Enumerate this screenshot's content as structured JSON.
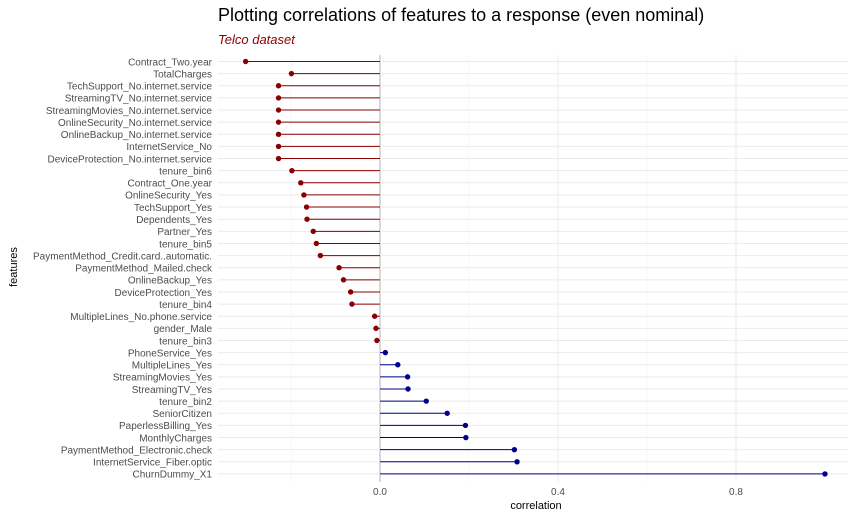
{
  "title": "Plotting correlations of features to a response (even nominal)",
  "subtitle": "Telco dataset",
  "colors": {
    "negative": "#8b0000",
    "positive": "#00008b",
    "subtitle": "#8b0000",
    "grid_major": "#ebebeb",
    "grid_minor": "#f4f4f4",
    "zero_line": "#b3b3b3",
    "axis_text": "#4d4d4d"
  },
  "chart_data": {
    "type": "lollipop",
    "title": "Plotting correlations of features to a response (even nominal)",
    "subtitle": "Telco dataset",
    "xlabel": "correlation",
    "ylabel": "features",
    "xlim": [
      -0.3,
      1.0
    ],
    "x_ticks": [
      0.0,
      0.4,
      0.8
    ],
    "x_tick_labels": [
      "0.0",
      "0.4",
      "0.8"
    ],
    "grid": true,
    "features": [
      "Contract_Two.year",
      "TotalCharges",
      "TechSupport_No.internet.service",
      "StreamingTV_No.internet.service",
      "StreamingMovies_No.internet.service",
      "OnlineSecurity_No.internet.service",
      "OnlineBackup_No.internet.service",
      "InternetService_No",
      "DeviceProtection_No.internet.service",
      "tenure_bin6",
      "Contract_One.year",
      "OnlineSecurity_Yes",
      "TechSupport_Yes",
      "Dependents_Yes",
      "Partner_Yes",
      "tenure_bin5",
      "PaymentMethod_Credit.card..automatic.",
      "PaymentMethod_Mailed.check",
      "OnlineBackup_Yes",
      "DeviceProtection_Yes",
      "tenure_bin4",
      "MultipleLines_No.phone.service",
      "gender_Male",
      "tenure_bin3",
      "PhoneService_Yes",
      "MultipleLines_Yes",
      "StreamingMovies_Yes",
      "StreamingTV_Yes",
      "tenure_bin2",
      "SeniorCitizen",
      "PaperlessBilling_Yes",
      "MonthlyCharges",
      "PaymentMethod_Electronic.check",
      "InternetService_Fiber.optic",
      "ChurnDummy_X1"
    ],
    "values": [
      -0.302,
      -0.199,
      -0.228,
      -0.228,
      -0.228,
      -0.228,
      -0.228,
      -0.228,
      -0.228,
      -0.198,
      -0.178,
      -0.171,
      -0.165,
      -0.164,
      -0.15,
      -0.143,
      -0.134,
      -0.092,
      -0.082,
      -0.066,
      -0.063,
      -0.012,
      -0.009,
      -0.007,
      0.012,
      0.04,
      0.062,
      0.063,
      0.104,
      0.151,
      0.192,
      0.193,
      0.302,
      0.308,
      1.0
    ]
  }
}
